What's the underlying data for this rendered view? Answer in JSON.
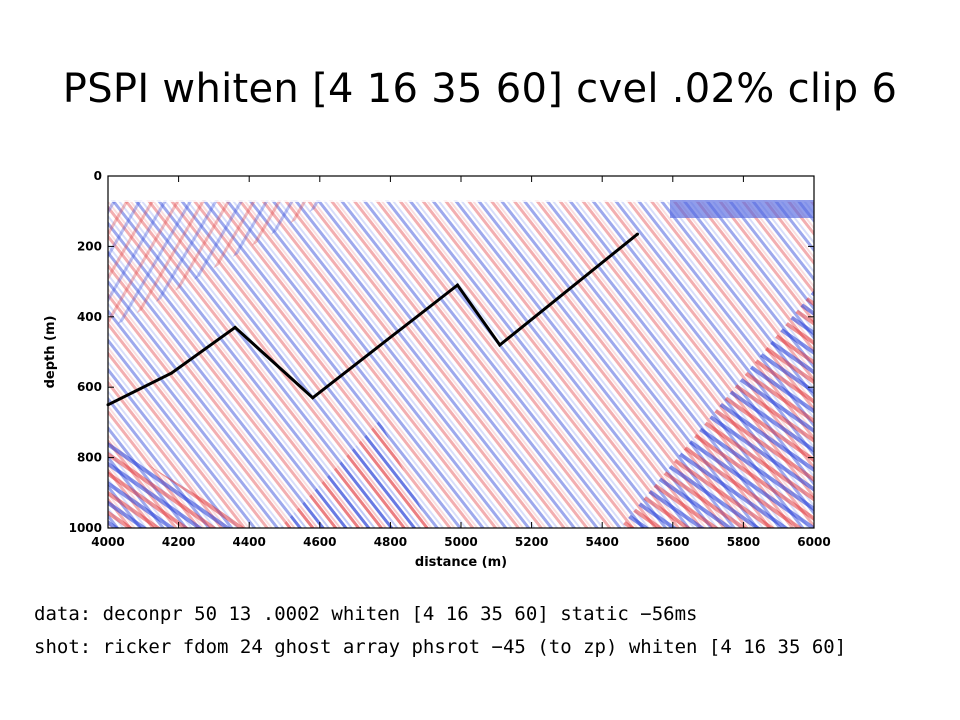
{
  "title": "PSPI whiten [4 16 35 60] cvel .02% clip 6",
  "caption": {
    "line1": "data: deconpr 50 13 .0002  whiten [4 16 35 60] static −56ms",
    "line2": "shot: ricker fdom 24 ghost array phsrot −45 (to zp) whiten [4 16 35 60]"
  },
  "chart_data": {
    "type": "heatmap",
    "title": "",
    "xlabel": "distance (m)",
    "ylabel": "depth (m)",
    "xlim": [
      4000,
      6000
    ],
    "ylim": [
      1000,
      0
    ],
    "xticks": [
      "4000",
      "4200",
      "4400",
      "4600",
      "4800",
      "5000",
      "5200",
      "5400",
      "5600",
      "5800",
      "6000"
    ],
    "xtick_values": [
      4000,
      4200,
      4400,
      4600,
      4800,
      5000,
      5200,
      5400,
      5600,
      5800,
      6000
    ],
    "yticks": [
      "0",
      "200",
      "400",
      "600",
      "800",
      "1000"
    ],
    "ytick_values": [
      0,
      200,
      400,
      600,
      800,
      1000
    ],
    "colormap": {
      "negative": "#1a2fd6",
      "zero": "#ffffff",
      "positive": "#e0242a"
    },
    "series": [
      {
        "type": "line",
        "color": "#000000",
        "x": [
          4000,
          4180,
          4360,
          4580,
          4990,
          5110,
          5500
        ],
        "y": [
          650,
          560,
          430,
          630,
          310,
          480,
          165
        ]
      }
    ]
  }
}
